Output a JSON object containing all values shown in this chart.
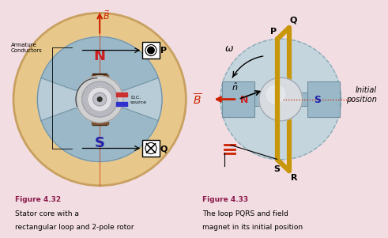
{
  "bg_color": "#f2dde2",
  "left_panel_bg": "#f2dde2",
  "right_panel_bg": "#f2dde2",
  "stator_outer_color": "#e8c88a",
  "stator_outer_edge": "#c8a060",
  "stator_inner_color": "#b8ccd8",
  "pole_color": "#9ab8c8",
  "pole_edge": "#7090a0",
  "rotor_coil_color": "#5a3010",
  "rotor_center_color": "#c8c8cc",
  "N_color": "#cc2020",
  "S_color": "#2020aa",
  "label_color": "#8B1A4A",
  "arrow_color": "#cc2200",
  "loop_color": "#c8960a",
  "fig32_bold": "Figure 4.32",
  "fig32_text1": "Stator core with a",
  "fig32_text2": "rectangular loop and 2-pole rotor",
  "fig33_bold": "Figure 4.33",
  "fig33_text1": "The loop PQRS and field",
  "fig33_text2": "magnet in its initial position"
}
